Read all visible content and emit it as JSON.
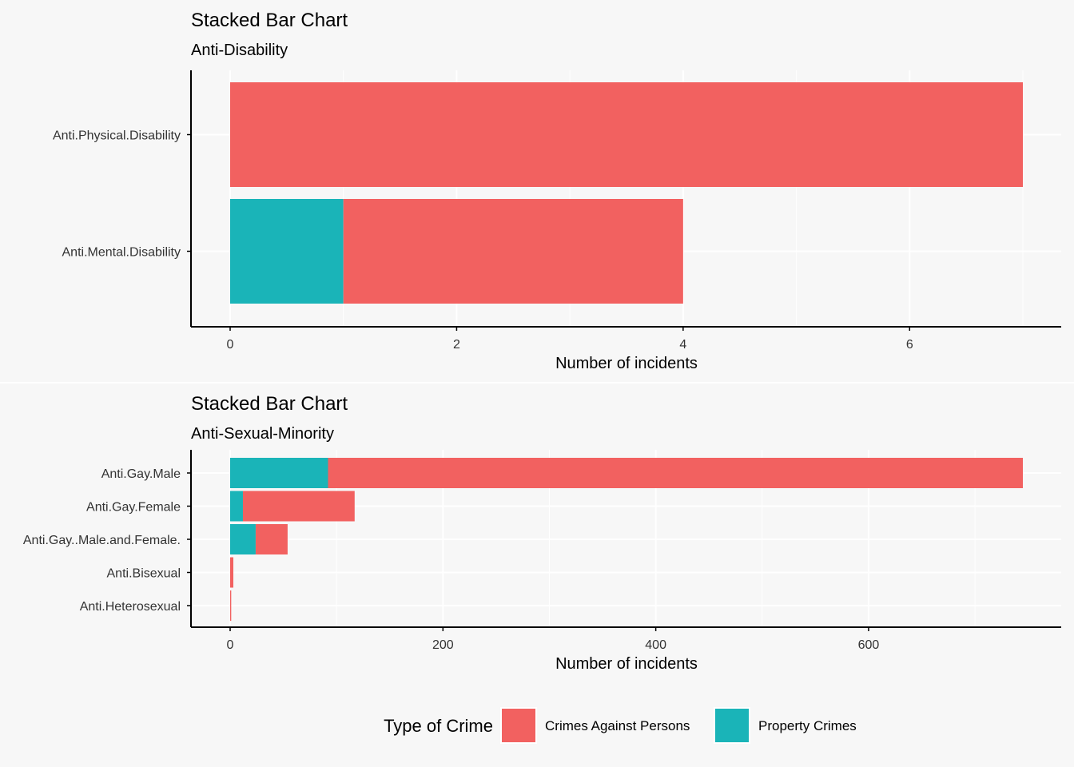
{
  "colors": {
    "page_background": "#f7f7f7",
    "panel_background": "#f7f7f7",
    "grid": "#ffffff",
    "axis": "#000000",
    "crimes_against_persons": "#f26160",
    "property_crimes": "#1ab4b8"
  },
  "legend": {
    "title": "Type of Crime",
    "position": "bottom",
    "items": [
      {
        "label": "Crimes Against Persons",
        "color_key": "crimes_against_persons"
      },
      {
        "label": "Property Crimes",
        "color_key": "property_crimes"
      }
    ]
  },
  "chart_data": [
    {
      "type": "bar",
      "orientation": "horizontal",
      "stacked": true,
      "title": "Stacked Bar Chart",
      "subtitle": "Anti-Disability",
      "xlabel": "Number of incidents",
      "ylabel": "",
      "xlim": [
        0,
        7
      ],
      "x_ticks": [
        0,
        2,
        4,
        6
      ],
      "grid": true,
      "categories": [
        "Anti.Physical.Disability",
        "Anti.Mental.Disability"
      ],
      "series": [
        {
          "name": "Property Crimes",
          "color_key": "property_crimes",
          "values": [
            0,
            1
          ]
        },
        {
          "name": "Crimes Against Persons",
          "color_key": "crimes_against_persons",
          "values": [
            7,
            3
          ]
        }
      ]
    },
    {
      "type": "bar",
      "orientation": "horizontal",
      "stacked": true,
      "title": "Stacked Bar Chart",
      "subtitle": "Anti-Sexual-Minority",
      "xlabel": "Number of incidents",
      "ylabel": "",
      "xlim": [
        0,
        745
      ],
      "x_ticks": [
        0,
        200,
        400,
        600
      ],
      "grid": true,
      "categories": [
        "Anti.Gay.Male",
        "Anti.Gay.Female",
        "Anti.Gay..Male.and.Female.",
        "Anti.Bisexual",
        "Anti.Heterosexual"
      ],
      "series": [
        {
          "name": "Property Crimes",
          "color_key": "property_crimes",
          "values": [
            92,
            12,
            24,
            0,
            0
          ]
        },
        {
          "name": "Crimes Against Persons",
          "color_key": "crimes_against_persons",
          "values": [
            653,
            105,
            30,
            3,
            1
          ]
        }
      ]
    }
  ]
}
